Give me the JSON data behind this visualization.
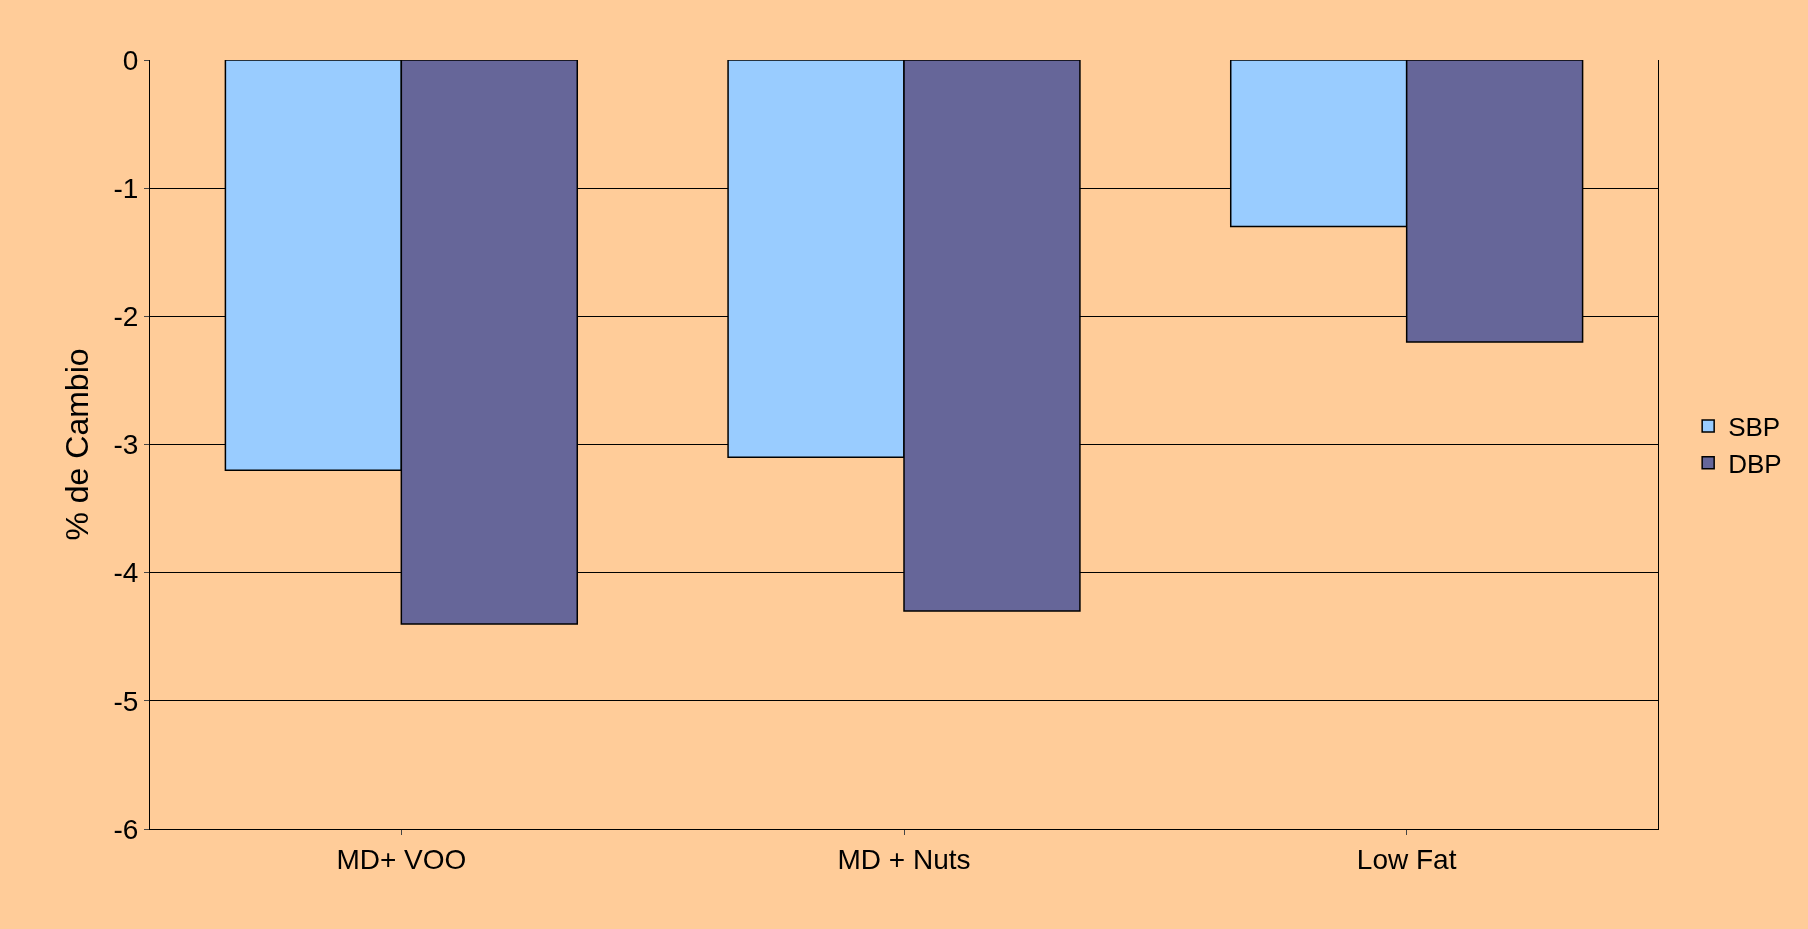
{
  "chart_data": {
    "type": "bar",
    "ylabel": "% de Cambio",
    "categories": [
      "MD+ VOO",
      "MD + Nuts",
      "Low Fat"
    ],
    "series": [
      {
        "name": "SBP",
        "color": "#99ccff",
        "values": [
          -3.2,
          -3.1,
          -1.3
        ]
      },
      {
        "name": "DBP",
        "color": "#666699",
        "values": [
          -4.4,
          -4.3,
          -2.2
        ]
      }
    ],
    "ylim": [
      -6,
      0
    ],
    "yticks": [
      -6,
      -5,
      -4,
      -3,
      -2,
      -1,
      0
    ],
    "grid": "y",
    "legend": "right"
  }
}
